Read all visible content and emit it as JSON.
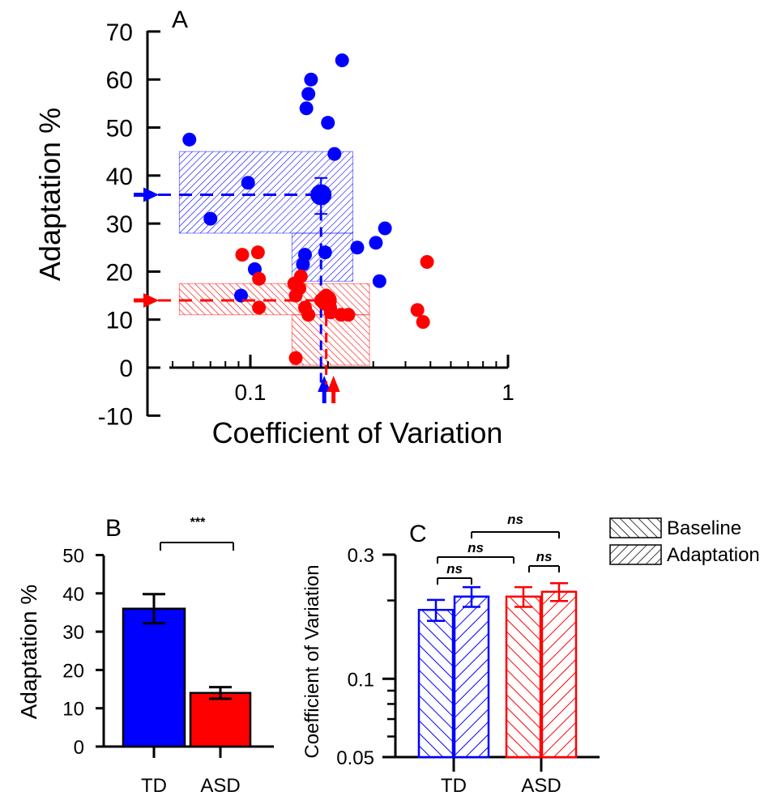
{
  "colors": {
    "td": "#0000ff",
    "asd": "#ff0000",
    "axis": "#000000"
  },
  "chart_data": [
    {
      "panel": "A",
      "type": "scatter",
      "panel_label": "A",
      "xlabel": "Coefficient of Variation",
      "ylabel": "Adaptation %",
      "xscale": "log",
      "xlim": [
        0.05,
        1
      ],
      "ylim": [
        -10,
        70
      ],
      "ytick_labels": [
        "70",
        "60",
        "50",
        "40",
        "30",
        "20",
        "10",
        "0",
        "-10"
      ],
      "ytick_values": [
        70,
        60,
        50,
        40,
        30,
        20,
        10,
        0,
        -10
      ],
      "xtick_labels": [
        "0.1",
        "1"
      ],
      "xtick_values": [
        0.1,
        1
      ],
      "series": [
        {
          "group": "TD",
          "color": "#0000ff",
          "points": [
            [
              0.058,
              47.5
            ],
            [
              0.07,
              31
            ],
            [
              0.098,
              38.5
            ],
            [
              0.104,
              20.5
            ],
            [
              0.092,
              15
            ],
            [
              0.172,
              60
            ],
            [
              0.168,
              57
            ],
            [
              0.165,
              54
            ],
            [
              0.227,
              64
            ],
            [
              0.2,
              51
            ],
            [
              0.212,
              44.5
            ],
            [
              0.26,
              25
            ],
            [
              0.307,
              26
            ],
            [
              0.333,
              29
            ],
            [
              0.317,
              18
            ],
            [
              0.195,
              24
            ],
            [
              0.163,
              23.5
            ],
            [
              0.16,
              21.5
            ]
          ],
          "mean": {
            "x": 0.188,
            "y": 36,
            "y_err": [
              32,
              39.5
            ]
          },
          "band": {
            "x_range": [
              0.053,
              0.25
            ],
            "y_range": [
              28,
              45
            ]
          },
          "band2": {
            "x_range": [
              0.145,
              0.25
            ],
            "y_range": [
              18,
              28
            ]
          }
        },
        {
          "group": "ASD",
          "color": "#ff0000",
          "points": [
            [
              0.093,
              23.5
            ],
            [
              0.107,
              24
            ],
            [
              0.108,
              18.5
            ],
            [
              0.108,
              12.5
            ],
            [
              0.148,
              17.5
            ],
            [
              0.15,
              15
            ],
            [
              0.155,
              16.5
            ],
            [
              0.157,
              19
            ],
            [
              0.163,
              12.5
            ],
            [
              0.168,
              11
            ],
            [
              0.188,
              14
            ],
            [
              0.197,
              15
            ],
            [
              0.204,
              12.5
            ],
            [
              0.205,
              11.5
            ],
            [
              0.225,
              11
            ],
            [
              0.24,
              11
            ],
            [
              0.445,
              12
            ],
            [
              0.468,
              9.5
            ],
            [
              0.485,
              22
            ],
            [
              0.15,
              2
            ]
          ],
          "mean": {
            "x": 0.197,
            "y": 14,
            "y_err": [
              12.5,
              15.5
            ]
          },
          "band": {
            "x_range": [
              0.053,
              0.29
            ],
            "y_range": [
              11,
              17.5
            ]
          },
          "band2": {
            "x_range": [
              0.145,
              0.29
            ],
            "y_range": [
              0.5,
              11
            ]
          }
        }
      ]
    },
    {
      "panel": "B",
      "type": "bar",
      "panel_label": "B",
      "ylabel": "Adaptation %",
      "ylim": [
        0,
        50
      ],
      "ytick_labels": [
        "50",
        "40",
        "30",
        "20",
        "10",
        "0"
      ],
      "ytick_values": [
        50,
        40,
        30,
        20,
        10,
        0
      ],
      "categories": [
        "TD",
        "ASD"
      ],
      "values": [
        36,
        14
      ],
      "errors": [
        3.8,
        1.5
      ],
      "significance": "***"
    },
    {
      "panel": "C",
      "type": "bar",
      "panel_label": "C",
      "ylabel": "Coefficient of Variation",
      "yscale": "log",
      "ylim": [
        0.05,
        0.3
      ],
      "ytick_labels": [
        "0.3",
        "0.1",
        "0.05"
      ],
      "ytick_values": [
        0.3,
        0.1,
        0.05
      ],
      "categories": [
        "TD",
        "ASD"
      ],
      "series": [
        {
          "name": "Baseline",
          "values": [
            0.184,
            0.207
          ],
          "errors": [
            0.017,
            0.018
          ]
        },
        {
          "name": "Adaptation",
          "values": [
            0.207,
            0.216
          ],
          "errors": [
            0.018,
            0.017
          ]
        }
      ],
      "significance_labels": [
        "ns",
        "ns",
        "ns",
        "ns"
      ],
      "legend": {
        "placement": "top-right",
        "entries": [
          "Baseline",
          "Adaptation"
        ]
      }
    }
  ]
}
